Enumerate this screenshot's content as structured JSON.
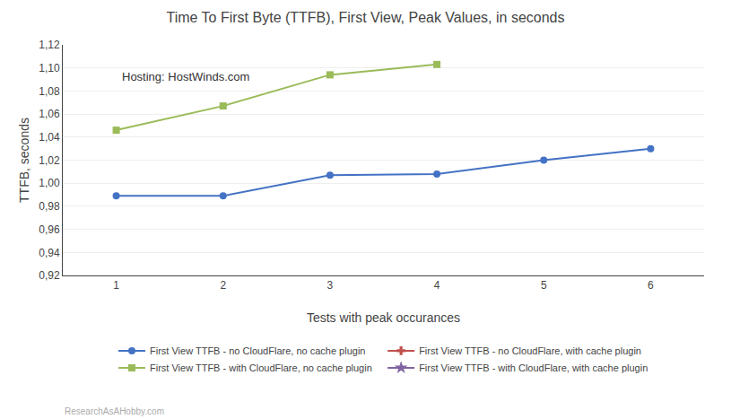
{
  "chart_data": {
    "type": "line",
    "title": "Time To First Byte (TTFB), First View, Peak Values, in seconds",
    "x_label": "Tests with peak occurances",
    "y_label": "TTFB, seconds",
    "annotations": [
      "Hosting: HostWinds.com",
      "ResearchAsAHobby.com"
    ],
    "x": [
      1,
      2,
      3,
      4,
      5,
      6
    ],
    "series": [
      {
        "name": "First View TTFB - no CloudFlare, no cache plugin",
        "color": "#4472C4",
        "marker": "circle",
        "values": [
          0.989,
          0.989,
          1.007,
          1.008,
          1.02,
          1.03
        ]
      },
      {
        "name": "First View TTFB - no CloudFlare, with cache plugin",
        "color": "#C0504D",
        "marker": "cross",
        "values": [
          null,
          null,
          null,
          null,
          null,
          null
        ]
      },
      {
        "name": "First View TTFB - with CloudFlare, no cache plugin",
        "color": "#9BBB59",
        "marker": "square",
        "values": [
          1.046,
          1.067,
          1.094,
          1.103,
          null,
          null
        ]
      },
      {
        "name": "First View TTFB - with CloudFlare, with cache plugin",
        "color": "#8064A2",
        "marker": "star",
        "values": [
          null,
          null,
          null,
          null,
          null,
          null
        ]
      }
    ],
    "xlim": [
      0.5,
      6.5
    ],
    "xticks": [
      1,
      2,
      3,
      4,
      5,
      6
    ],
    "ylim": [
      0.92,
      1.12
    ],
    "yticks": [
      {
        "value": 0.92,
        "label": "0,92"
      },
      {
        "value": 0.94,
        "label": "0,94"
      },
      {
        "value": 0.96,
        "label": "0,96"
      },
      {
        "value": 0.98,
        "label": "0,98"
      },
      {
        "value": 1.0,
        "label": "1,00"
      },
      {
        "value": 1.02,
        "label": "1,02"
      },
      {
        "value": 1.04,
        "label": "1,04"
      },
      {
        "value": 1.06,
        "label": "1,06"
      },
      {
        "value": 1.08,
        "label": "1,08"
      },
      {
        "value": 1.1,
        "label": "1,10"
      },
      {
        "value": 1.12,
        "label": "1,12"
      }
    ],
    "grid": "y",
    "legend": "bottom"
  }
}
